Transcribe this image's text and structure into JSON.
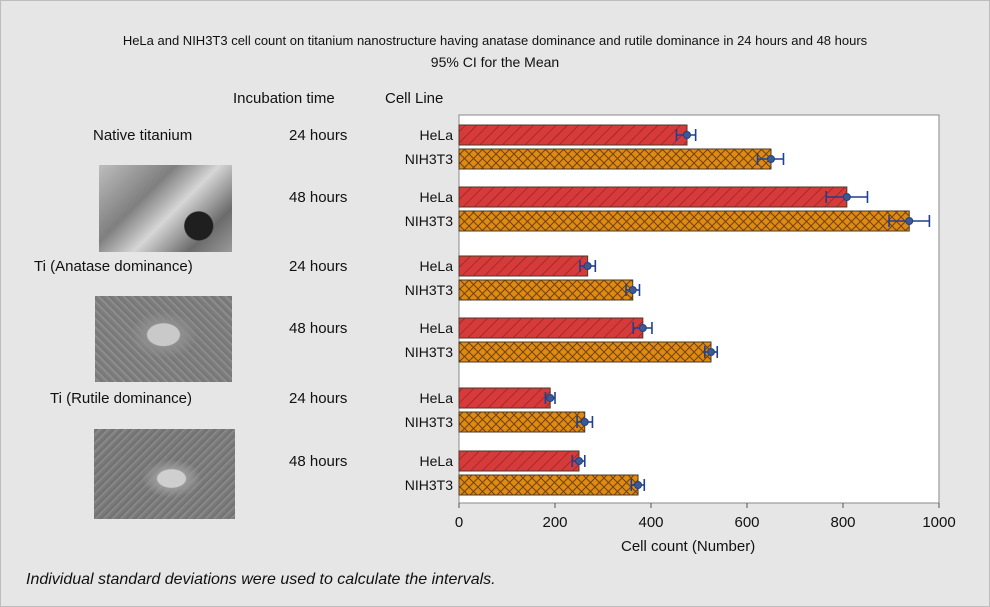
{
  "chart_data": {
    "type": "bar",
    "orientation": "horizontal",
    "title": "HeLa and NIH3T3 cell count on titanium nanostructure having anatase dominance and rutile dominance in 24 hours and 48 hours",
    "subtitle": "95% CI for the Mean",
    "xlabel": "Cell count (Number)",
    "xlim": [
      0,
      1000
    ],
    "xticks": [
      0,
      200,
      400,
      600,
      800,
      1000
    ],
    "column_headers": {
      "incubation": "Incubation time",
      "cell_line": "Cell Line"
    },
    "groups": [
      "Native titanium",
      "Ti (Anatase dominance)",
      "Ti (Rutile dominance)"
    ],
    "times": [
      "24 hours",
      "48 hours"
    ],
    "cell_lines": [
      "HeLa",
      "NIH3T3"
    ],
    "series_colors": {
      "HeLa": "#d63a3a",
      "NIH3T3": "#df8a12"
    },
    "bars": [
      {
        "group": 0,
        "time": 0,
        "line": 0,
        "mean": 475,
        "ci_low": 453,
        "ci_high": 493
      },
      {
        "group": 0,
        "time": 0,
        "line": 1,
        "mean": 650,
        "ci_low": 622,
        "ci_high": 676
      },
      {
        "group": 0,
        "time": 1,
        "line": 0,
        "mean": 808,
        "ci_low": 765,
        "ci_high": 851
      },
      {
        "group": 0,
        "time": 1,
        "line": 1,
        "mean": 938,
        "ci_low": 896,
        "ci_high": 980
      },
      {
        "group": 1,
        "time": 0,
        "line": 0,
        "mean": 268,
        "ci_low": 252,
        "ci_high": 284
      },
      {
        "group": 1,
        "time": 0,
        "line": 1,
        "mean": 362,
        "ci_low": 348,
        "ci_high": 376
      },
      {
        "group": 1,
        "time": 1,
        "line": 0,
        "mean": 383,
        "ci_low": 363,
        "ci_high": 402
      },
      {
        "group": 1,
        "time": 1,
        "line": 1,
        "mean": 525,
        "ci_low": 512,
        "ci_high": 538
      },
      {
        "group": 2,
        "time": 0,
        "line": 0,
        "mean": 190,
        "ci_low": 180,
        "ci_high": 200
      },
      {
        "group": 2,
        "time": 0,
        "line": 1,
        "mean": 262,
        "ci_low": 246,
        "ci_high": 278
      },
      {
        "group": 2,
        "time": 1,
        "line": 0,
        "mean": 250,
        "ci_low": 236,
        "ci_high": 262
      },
      {
        "group": 2,
        "time": 1,
        "line": 1,
        "mean": 373,
        "ci_low": 359,
        "ci_high": 386
      }
    ],
    "footnote": "Individual standard deviations were used to calculate the intervals.",
    "grid": false
  }
}
